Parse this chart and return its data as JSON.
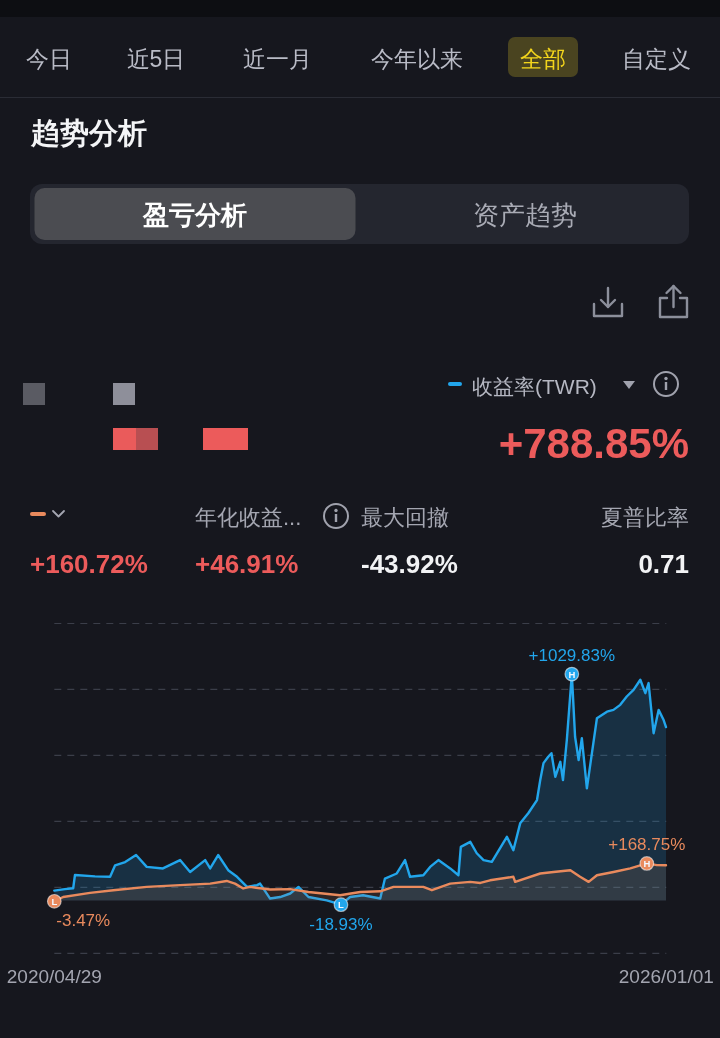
{
  "chart_data": {
    "type": "area",
    "title": "趋势分析",
    "series": [
      {
        "name": "收益率(TWR)",
        "color": "#22a6ec",
        "x": [
          "2020-04-29",
          "2020-06-04",
          "2020-07-02",
          "2020-07-08",
          "2020-09-14",
          "2020-11-04",
          "2020-11-21",
          "2020-12-25",
          "2021-01-31",
          "2021-03-08",
          "2021-05-02",
          "2021-06-29",
          "2021-08-02",
          "2021-09-22",
          "2021-10-09",
          "2021-11-05",
          "2021-12-09",
          "2022-01-08",
          "2022-02-11",
          "2022-03-17",
          "2022-03-27",
          "2022-04-30",
          "2022-06-03",
          "2022-07-07",
          "2022-08-04",
          "2022-09-07",
          "2022-11-08",
          "2022-12-26",
          "2023-01-26",
          "2023-03-11",
          "2023-05-08",
          "2023-05-24",
          "2023-07-03",
          "2023-07-31",
          "2023-08-17",
          "2023-10-01",
          "2023-10-24",
          "2023-11-21",
          "2023-12-31",
          "2024-01-28",
          "2024-02-05",
          "2024-03-08",
          "2024-03-30",
          "2024-04-22",
          "2024-05-20",
          "2024-07-10",
          "2024-08-01",
          "2024-08-24",
          "2024-09-21",
          "2024-10-20",
          "2024-10-31",
          "2024-11-11",
          "2024-11-27",
          "2024-12-08",
          "2024-12-21",
          "2025-01-07",
          "2025-01-16",
          "2025-01-29",
          "2025-02-15",
          "2025-02-26",
          "2025-03-10",
          "2025-03-21",
          "2025-04-07",
          "2025-04-24",
          "2025-05-11",
          "2025-06-14",
          "2025-07-06",
          "2025-07-29",
          "2025-08-20",
          "2025-09-12",
          "2025-10-05",
          "2025-10-22",
          "2025-11-02",
          "2025-11-19",
          "2025-12-06",
          "2025-12-23",
          "2025-12-31"
        ],
        "values": [
          45,
          52,
          56,
          116,
          110,
          108,
          160,
          175,
          207,
          153,
          146,
          184,
          130,
          184,
          146,
          207,
          138,
          108,
          62,
          70,
          77,
          9,
          16,
          32,
          62,
          16,
          1,
          -18.93,
          16,
          24,
          9,
          100,
          123,
          184,
          108,
          115,
          153,
          184,
          146,
          115,
          244,
          267,
          215,
          184,
          176,
          290,
          229,
          351,
          398,
          457,
          548,
          625,
          654,
          670,
          563,
          631,
          548,
          730,
          1029.83,
          745,
          639,
          738,
          510,
          670,
          829,
          859,
          867,
          890,
          928,
          958,
          1004,
          943,
          989,
          761,
          867,
          821,
          788.85
        ],
        "value_labels": [
          null,
          null,
          null,
          null,
          null,
          null,
          null,
          null,
          null,
          null,
          null,
          null,
          null,
          null,
          null,
          null,
          null,
          null,
          null,
          null,
          null,
          null,
          null,
          null,
          null,
          null,
          null,
          "-18.93%",
          null,
          null,
          null,
          null,
          null,
          null,
          null,
          null,
          null,
          null,
          null,
          null,
          null,
          null,
          null,
          null,
          null,
          null,
          null,
          null,
          null,
          null,
          null,
          null,
          null,
          null,
          null,
          null,
          null,
          null,
          "+1029.83%",
          null,
          null,
          null,
          null,
          null,
          null,
          null,
          null,
          null,
          null,
          null,
          null,
          null,
          null,
          null,
          null,
          null,
          null
        ]
      },
      {
        "color": "#e98a5d",
        "x": [
          "2020-04-29",
          "2020-05-29",
          "2020-08-28",
          "2020-11-15",
          "2021-03-08",
          "2021-06-29",
          "2021-10-09",
          "2021-12-04",
          "2022-01-01",
          "2022-01-29",
          "2022-02-21",
          "2022-04-30",
          "2022-07-07",
          "2022-09-07",
          "2022-12-23",
          "2023-03-01",
          "2023-05-08",
          "2023-06-22",
          "2023-10-01",
          "2023-10-30",
          "2023-12-31",
          "2024-03-08",
          "2024-04-11",
          "2024-05-14",
          "2024-08-01",
          "2024-08-07",
          "2024-10-31",
          "2024-12-15",
          "2025-02-10",
          "2025-03-15",
          "2025-04-13",
          "2025-05-11",
          "2025-07-06",
          "2025-09-01",
          "2025-10-27",
          "2025-11-30",
          "2025-12-31"
        ],
        "values": [
          -3.47,
          16,
          35,
          47,
          62,
          70,
          77,
          89,
          77,
          55,
          62,
          50,
          52,
          39,
          24,
          39,
          42,
          62,
          62,
          47,
          77,
          85,
          80,
          92,
          108,
          85,
          123,
          130,
          138,
          108,
          85,
          115,
          130,
          146,
          168.75,
          161,
          160.72
        ],
        "value_labels": [
          "-3.47%",
          null,
          null,
          null,
          null,
          null,
          null,
          null,
          null,
          null,
          null,
          null,
          null,
          null,
          null,
          null,
          null,
          null,
          null,
          null,
          null,
          null,
          null,
          null,
          null,
          null,
          null,
          null,
          null,
          null,
          null,
          null,
          null,
          null,
          "+168.75%",
          null,
          null
        ]
      }
    ],
    "xlim": [
      "2020-04-29",
      "2026-01-01"
    ],
    "xticks": [
      {
        "value": "2020-04-29",
        "label": "2020/04/29"
      },
      {
        "value": "2026-01-01",
        "label": "2026/01/01"
      }
    ],
    "ylim": [
      -240,
      1260
    ],
    "yticks": [
      {
        "value": -240,
        "label": null
      },
      {
        "value": 60,
        "label": null
      },
      {
        "value": 360,
        "label": null
      },
      {
        "value": 660,
        "label": null
      },
      {
        "value": 960,
        "label": null
      },
      {
        "value": 1260,
        "label": null
      }
    ],
    "grid": "y",
    "legend": "top right",
    "tick_labels": "x",
    "annotations": [
      "今日",
      "近5日",
      "近一月",
      "今年以来",
      "全部",
      "自定义",
      "盈亏分析",
      "资产趋势",
      "+788.85%",
      "年化收益...",
      "最大回撤",
      "夏普比率",
      "+160.72%",
      "+46.91%",
      "-43.92%",
      "0.71",
      {
        "text": "H",
        "x": "2025-02-15",
        "y": 1029.83
      },
      {
        "text": "H",
        "x": "2025-10-27",
        "y": 168.75
      },
      {
        "text": "L",
        "x": "2020-04-29",
        "y": -3.47
      },
      {
        "text": "L",
        "x": "2022-12-26",
        "y": -18.93
      }
    ]
  }
}
